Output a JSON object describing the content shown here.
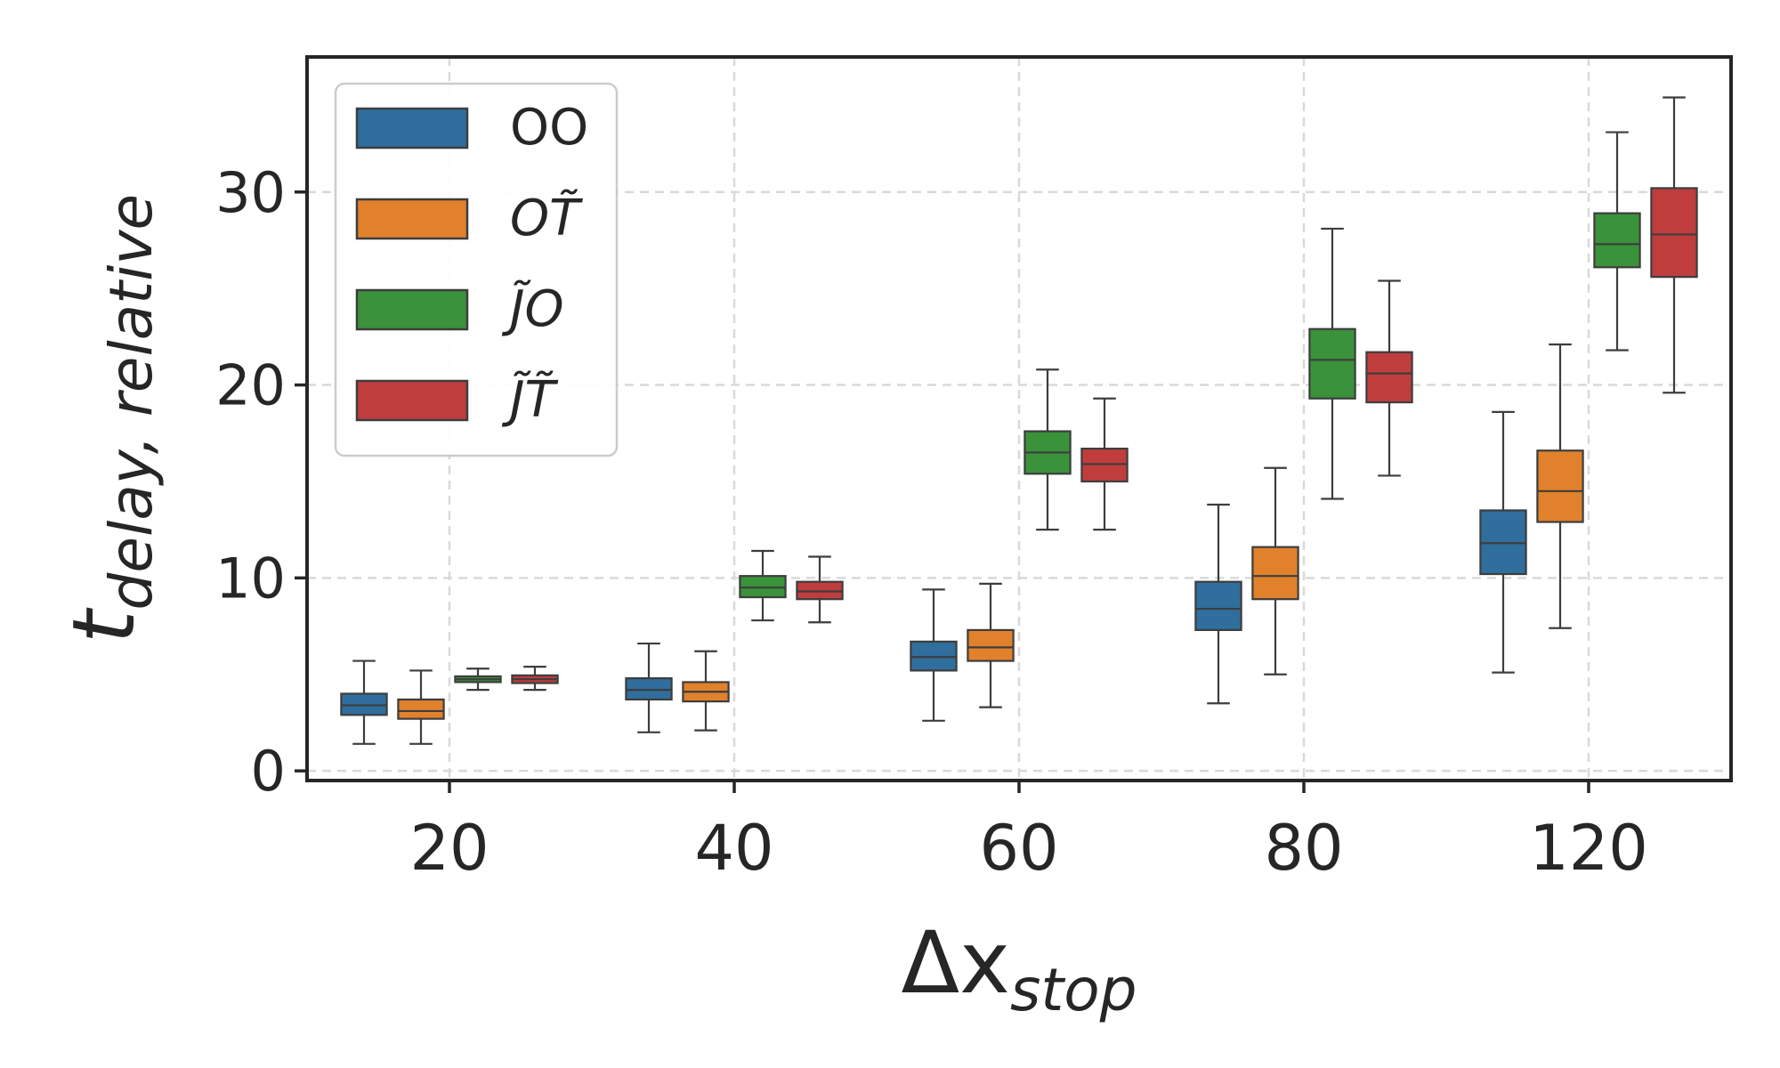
{
  "chart_data": {
    "type": "boxplot",
    "title": "",
    "xlabel": {
      "main": "Δx",
      "subscript": "stop"
    },
    "ylabel": {
      "main": "t",
      "subscript": "delay, relative"
    },
    "categories": [
      "20",
      "40",
      "60",
      "80",
      "120"
    ],
    "ylim": [
      -0.5,
      37
    ],
    "yticks": [
      0,
      10,
      20,
      30
    ],
    "grid": true,
    "legend_position": "top-left",
    "series": [
      {
        "name": "OO",
        "color": "#2f6e9d",
        "boxes": [
          {
            "whislo": 1.4,
            "q1": 2.9,
            "med": 3.4,
            "q3": 4.0,
            "whishi": 5.7
          },
          {
            "whislo": 2.0,
            "q1": 3.7,
            "med": 4.2,
            "q3": 4.8,
            "whishi": 6.6
          },
          {
            "whislo": 2.6,
            "q1": 5.2,
            "med": 5.9,
            "q3": 6.7,
            "whishi": 9.4
          },
          {
            "whislo": 3.5,
            "q1": 7.3,
            "med": 8.4,
            "q3": 9.8,
            "whishi": 13.8
          },
          {
            "whislo": 5.1,
            "q1": 10.2,
            "med": 11.8,
            "q3": 13.5,
            "whishi": 18.6
          }
        ]
      },
      {
        "name": "OT̃",
        "color": "#e1812c",
        "boxes": [
          {
            "whislo": 1.4,
            "q1": 2.7,
            "med": 3.1,
            "q3": 3.7,
            "whishi": 5.2
          },
          {
            "whislo": 2.1,
            "q1": 3.6,
            "med": 4.1,
            "q3": 4.6,
            "whishi": 6.2
          },
          {
            "whislo": 3.3,
            "q1": 5.7,
            "med": 6.4,
            "q3": 7.3,
            "whishi": 9.7
          },
          {
            "whislo": 5.0,
            "q1": 8.9,
            "med": 10.1,
            "q3": 11.6,
            "whishi": 15.7
          },
          {
            "whislo": 7.4,
            "q1": 12.9,
            "med": 14.5,
            "q3": 16.6,
            "whishi": 22.1
          }
        ]
      },
      {
        "name": "J̃O",
        "color": "#3a923a",
        "boxes": [
          {
            "whislo": 4.2,
            "q1": 4.6,
            "med": 4.75,
            "q3": 4.9,
            "whishi": 5.3
          },
          {
            "whislo": 7.8,
            "q1": 9.0,
            "med": 9.5,
            "q3": 10.1,
            "whishi": 11.4
          },
          {
            "whislo": 12.5,
            "q1": 15.4,
            "med": 16.5,
            "q3": 17.6,
            "whishi": 20.8
          },
          {
            "whislo": 14.1,
            "q1": 19.3,
            "med": 21.3,
            "q3": 22.9,
            "whishi": 28.1
          },
          {
            "whislo": 21.8,
            "q1": 26.1,
            "med": 27.3,
            "q3": 28.9,
            "whishi": 33.1
          }
        ]
      },
      {
        "name": "J̃T̃",
        "color": "#c03d3e",
        "boxes": [
          {
            "whislo": 4.2,
            "q1": 4.55,
            "med": 4.75,
            "q3": 4.95,
            "whishi": 5.4
          },
          {
            "whislo": 7.7,
            "q1": 8.9,
            "med": 9.3,
            "q3": 9.8,
            "whishi": 11.1
          },
          {
            "whislo": 12.5,
            "q1": 15.0,
            "med": 15.9,
            "q3": 16.7,
            "whishi": 19.3
          },
          {
            "whislo": 15.3,
            "q1": 19.1,
            "med": 20.6,
            "q3": 21.7,
            "whishi": 25.4
          },
          {
            "whislo": 19.6,
            "q1": 25.6,
            "med": 27.8,
            "q3": 30.2,
            "whishi": 34.9
          }
        ]
      }
    ]
  }
}
